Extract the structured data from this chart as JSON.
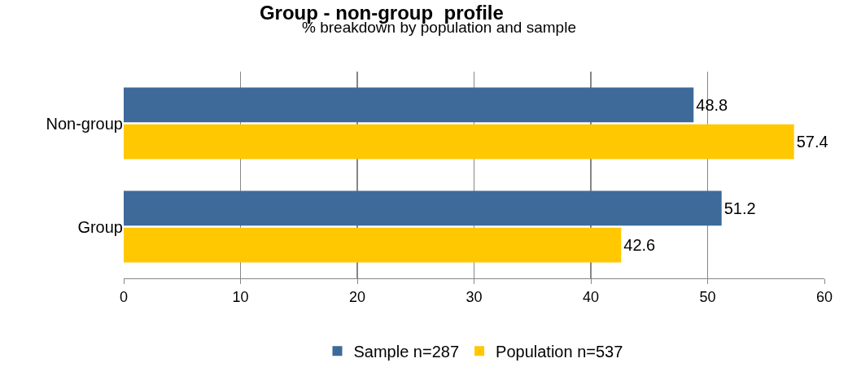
{
  "chart_data": {
    "type": "bar",
    "title": "Group - non-group  profile",
    "subtitle": "% breakdown by population and sample",
    "orientation": "horizontal",
    "categories": [
      "Non-group",
      "Group"
    ],
    "series": [
      {
        "name": "Sample n=287",
        "color": "#3e6a9a",
        "values": [
          48.8,
          51.2
        ]
      },
      {
        "name": "Population n=537",
        "color": "#ffc800",
        "values": [
          57.4,
          42.6
        ]
      }
    ],
    "xlim": [
      0,
      60
    ],
    "xticks": [
      0,
      10,
      20,
      30,
      40,
      50,
      60
    ],
    "grid": "x",
    "legend": "bottom",
    "data_labels": true
  }
}
